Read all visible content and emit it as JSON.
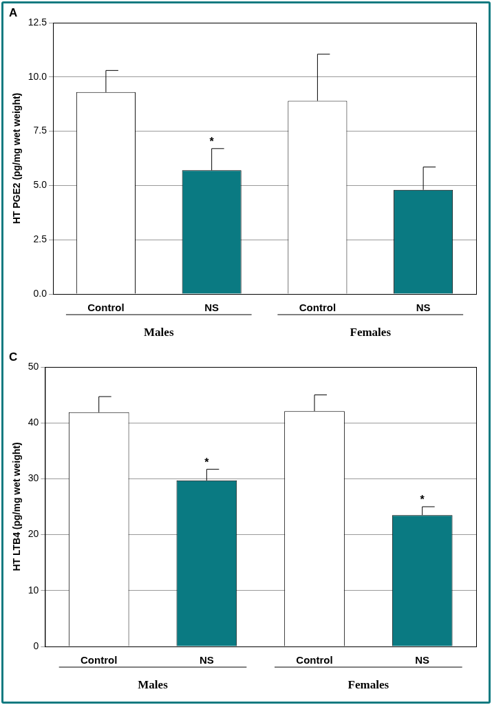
{
  "chart_data": [
    {
      "type": "bar",
      "panel": "A",
      "y_label": "HT PGE2 (pg/mg wet weight)",
      "categories": [
        "Control",
        "NS",
        "Control",
        "NS"
      ],
      "category_groups": [
        "Males",
        "Males",
        "Females",
        "Females"
      ],
      "values": [
        9.3,
        5.7,
        8.9,
        4.8
      ],
      "errors": [
        1.0,
        1.0,
        2.15,
        1.05
      ],
      "significance": [
        null,
        "*",
        null,
        null
      ],
      "colors": [
        "#ffffff",
        "#0a7a82",
        "#ffffff",
        "#0a7a82"
      ],
      "ylim": [
        0,
        12.5
      ],
      "yticks": [
        {
          "value": 0,
          "label": "0.0"
        },
        2.5,
        {
          "value": 5,
          "label": "5.0"
        },
        7.5,
        {
          "value": 10,
          "label": "10.0"
        },
        12.5
      ],
      "grid": true
    },
    {
      "type": "bar",
      "panel": "C",
      "y_label": "HT LTB4 (pg/mg wet weight)",
      "categories": [
        "Control",
        "NS",
        "Control",
        "NS"
      ],
      "category_groups": [
        "Males",
        "Males",
        "Females",
        "Females"
      ],
      "values": [
        41.9,
        29.7,
        42.1,
        23.5
      ],
      "errors": [
        2.8,
        2.0,
        2.9,
        1.5
      ],
      "significance": [
        null,
        "*",
        null,
        "*"
      ],
      "colors": [
        "#ffffff",
        "#0a7a82",
        "#ffffff",
        "#0a7a82"
      ],
      "ylim": [
        0,
        50
      ],
      "yticks": [
        0,
        10,
        20,
        30,
        40,
        50
      ],
      "grid": true
    }
  ]
}
